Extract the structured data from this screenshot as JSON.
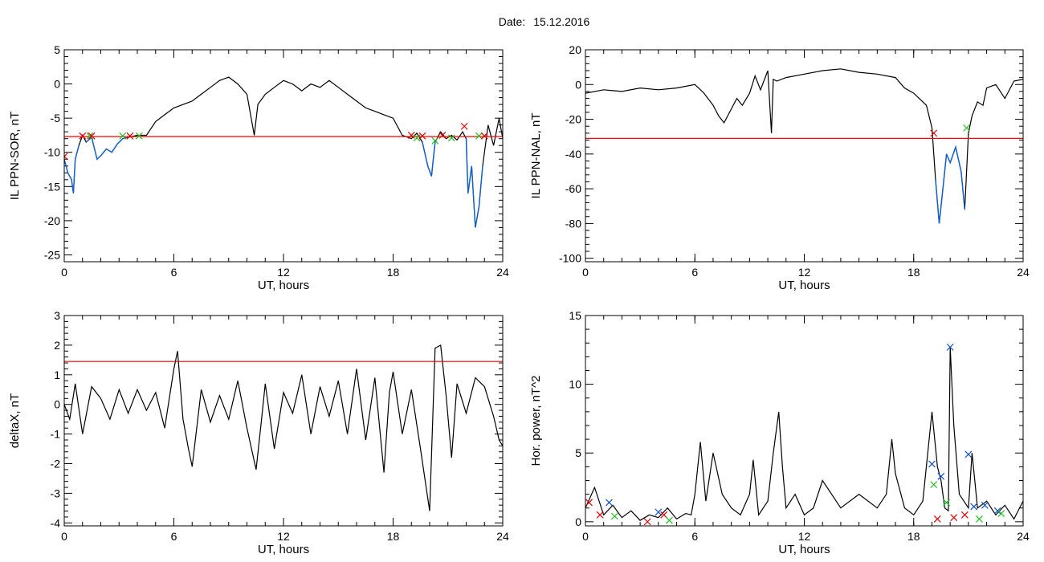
{
  "header": {
    "date_label": "Date:",
    "date_value": "15.12.2016"
  },
  "colors": {
    "trace": "#000000",
    "threshold": "#ff0000",
    "highlight": "#1060d0",
    "marker_red": "#e00000",
    "marker_green": "#20c020",
    "marker_blue": "#1050d0"
  },
  "chart_data": [
    {
      "id": "sor",
      "type": "line",
      "ylabel": "IL PPN-SOR, nT",
      "xlabel": "UT, hours",
      "xlim": [
        0,
        24
      ],
      "ylim": [
        -26,
        5
      ],
      "xticks": [
        0,
        6,
        12,
        18,
        24
      ],
      "yticks": [
        5,
        0,
        -5,
        -10,
        -15,
        -20,
        -25
      ],
      "threshold": -7.7,
      "series": [
        {
          "x": [
            0,
            0.2,
            0.4,
            0.5,
            0.6,
            0.8,
            1.0,
            1.2,
            1.5,
            1.8,
            2.0,
            2.3,
            2.6,
            2.9,
            3.2,
            3.5,
            4.0,
            4.5,
            5.0,
            5.5,
            6.0,
            7.0,
            7.5,
            8.0,
            8.5,
            9.0,
            9.5,
            10.0,
            10.4,
            10.6,
            11.0,
            11.5,
            12.0,
            12.5,
            13.0,
            13.5,
            14.0,
            14.5,
            15.0,
            15.5,
            16.0,
            16.5,
            17.0,
            17.5,
            18.0,
            18.5,
            19.0,
            19.3,
            19.6,
            19.9,
            20.1,
            20.3,
            20.6,
            20.9,
            21.2,
            21.5,
            21.8,
            22.0,
            22.1,
            22.3,
            22.5,
            22.7,
            22.9,
            23.2,
            23.5,
            23.8,
            24.0
          ],
          "y": [
            -11,
            -13,
            -14,
            -16,
            -11,
            -9,
            -7.5,
            -8.5,
            -7.8,
            -11,
            -10.5,
            -9.5,
            -10,
            -8.8,
            -8,
            -7.8,
            -7.5,
            -7.5,
            -5.5,
            -4.5,
            -3.5,
            -2.5,
            -1.5,
            -0.5,
            0.5,
            1,
            0,
            -1.5,
            -7.5,
            -3,
            -1.5,
            -0.5,
            0.5,
            0,
            -1,
            0,
            -0.5,
            0.5,
            -0.5,
            -1.5,
            -2.5,
            -3.5,
            -4,
            -4.5,
            -5,
            -7.5,
            -8,
            -7.2,
            -8.5,
            -12,
            -13.5,
            -8.5,
            -7,
            -8,
            -7.5,
            -8.2,
            -7,
            -8,
            -16,
            -12,
            -21,
            -18,
            -12,
            -6,
            -9,
            -5,
            -8
          ]
        }
      ],
      "markers": [
        {
          "x": 0.0,
          "y": -10.6,
          "c": "red"
        },
        {
          "x": 1.0,
          "y": -7.6,
          "c": "red"
        },
        {
          "x": 1.4,
          "y": -7.6,
          "c": "green"
        },
        {
          "x": 1.5,
          "y": -7.6,
          "c": "red"
        },
        {
          "x": 3.2,
          "y": -7.6,
          "c": "green"
        },
        {
          "x": 3.6,
          "y": -7.6,
          "c": "red"
        },
        {
          "x": 4.1,
          "y": -7.6,
          "c": "green"
        },
        {
          "x": 19.0,
          "y": -7.5,
          "c": "red"
        },
        {
          "x": 19.3,
          "y": -7.9,
          "c": "green"
        },
        {
          "x": 19.6,
          "y": -7.6,
          "c": "red"
        },
        {
          "x": 20.3,
          "y": -8.3,
          "c": "green"
        },
        {
          "x": 20.7,
          "y": -7.5,
          "c": "red"
        },
        {
          "x": 21.2,
          "y": -7.9,
          "c": "green"
        },
        {
          "x": 21.9,
          "y": -6.2,
          "c": "red"
        },
        {
          "x": 22.7,
          "y": -7.6,
          "c": "green"
        },
        {
          "x": 23.0,
          "y": -7.6,
          "c": "red"
        }
      ]
    },
    {
      "id": "nal",
      "type": "line",
      "ylabel": "IL PPN-NAL, nT",
      "xlabel": "UT, hours",
      "xlim": [
        0,
        24
      ],
      "ylim": [
        -102,
        20
      ],
      "xticks": [
        0,
        6,
        12,
        18,
        24
      ],
      "yticks": [
        20,
        0,
        -20,
        -40,
        -60,
        -80,
        -100
      ],
      "threshold": -31,
      "series": [
        {
          "x": [
            0,
            1.0,
            2.0,
            3.0,
            4.0,
            5.0,
            6.0,
            6.5,
            7.0,
            7.3,
            7.6,
            8.0,
            8.3,
            8.6,
            9.0,
            9.3,
            9.6,
            10.0,
            10.2,
            10.3,
            10.5,
            11.0,
            12.0,
            13.0,
            14.0,
            15.0,
            16.0,
            17.0,
            17.5,
            18.0,
            18.3,
            18.7,
            19.0,
            19.2,
            19.4,
            19.6,
            19.8,
            20.0,
            20.3,
            20.6,
            20.8,
            21.0,
            21.2,
            21.5,
            21.8,
            22.0,
            22.5,
            23.0,
            23.5,
            24.0
          ],
          "y": [
            -5,
            -3,
            -4,
            -2,
            -3,
            -2,
            0,
            -5,
            -12,
            -18,
            -22,
            -14,
            -8,
            -12,
            -5,
            5,
            -3,
            8,
            -28,
            3,
            2,
            4,
            6,
            8,
            9,
            7,
            6,
            4,
            -2,
            -5,
            -8,
            -12,
            -25,
            -55,
            -80,
            -60,
            -40,
            -45,
            -36,
            -50,
            -72,
            -28,
            -18,
            -10,
            -12,
            -2,
            0,
            -8,
            2,
            3
          ]
        }
      ],
      "markers": [
        {
          "x": 19.1,
          "y": -28,
          "c": "red"
        },
        {
          "x": 20.9,
          "y": -25,
          "c": "green"
        }
      ]
    },
    {
      "id": "deltax",
      "type": "line",
      "ylabel": "deltaX, nT",
      "xlabel": "UT, hours",
      "xlim": [
        0,
        24
      ],
      "ylim": [
        -4.1,
        3
      ],
      "xticks": [
        0,
        6,
        12,
        18,
        24
      ],
      "yticks": [
        3,
        2,
        1,
        0,
        -1,
        -2,
        -3,
        -4
      ],
      "threshold": 1.45,
      "series": [
        {
          "x": [
            0,
            0.3,
            0.6,
            1.0,
            1.5,
            2.0,
            2.5,
            3.0,
            3.5,
            4.0,
            4.5,
            5.0,
            5.5,
            6.0,
            6.2,
            6.5,
            6.8,
            7.0,
            7.5,
            8.0,
            8.5,
            9.0,
            9.5,
            10.0,
            10.5,
            10.8,
            11.0,
            11.5,
            12.0,
            12.5,
            13.0,
            13.5,
            14.0,
            14.5,
            15.0,
            15.5,
            16.0,
            16.5,
            17.0,
            17.5,
            17.8,
            18.0,
            18.5,
            19.0,
            19.5,
            20.0,
            20.3,
            20.6,
            20.9,
            21.2,
            21.5,
            22.0,
            22.5,
            23.0,
            23.5,
            23.8,
            24.0
          ],
          "y": [
            0,
            -0.5,
            0.7,
            -1,
            0.6,
            0.2,
            -0.5,
            0.5,
            -0.3,
            0.5,
            -0.2,
            0.4,
            -0.8,
            1.2,
            1.8,
            -0.5,
            -1.5,
            -2.1,
            0.5,
            -0.6,
            0.3,
            -0.5,
            0.8,
            -0.8,
            -2.2,
            -0.5,
            0.7,
            -1.5,
            0.4,
            -0.3,
            1.0,
            -1.0,
            0.6,
            -0.4,
            0.8,
            -1.0,
            1.2,
            -1.2,
            0.9,
            -2.3,
            0.4,
            1.1,
            -1.0,
            0.5,
            -1.5,
            -3.6,
            1.9,
            2.0,
            0.3,
            -1.8,
            0.7,
            -0.3,
            0.9,
            0.6,
            -0.4,
            -1.2,
            -1.4
          ]
        }
      ],
      "markers": []
    },
    {
      "id": "power",
      "type": "line",
      "ylabel": "Hor. power, nT^2",
      "xlabel": "UT, hours",
      "xlim": [
        0,
        24
      ],
      "ylim": [
        -0.3,
        15
      ],
      "xticks": [
        0,
        6,
        12,
        18,
        24
      ],
      "yticks": [
        15,
        10,
        5,
        0
      ],
      "threshold": null,
      "series": [
        {
          "x": [
            0,
            0.5,
            1.0,
            1.5,
            2.0,
            2.5,
            3.0,
            3.5,
            4.0,
            4.5,
            5.0,
            5.5,
            5.8,
            6.0,
            6.3,
            6.6,
            7.0,
            7.5,
            8.0,
            8.5,
            9.0,
            9.2,
            9.5,
            10.0,
            10.3,
            10.6,
            10.8,
            11.0,
            11.5,
            12.0,
            12.5,
            13.0,
            14.0,
            15.0,
            16.0,
            16.5,
            16.8,
            17.0,
            17.5,
            18.0,
            18.5,
            19.0,
            19.3,
            19.5,
            19.7,
            19.9,
            20.0,
            20.2,
            20.5,
            21.0,
            21.2,
            21.5,
            22.0,
            22.5,
            23.0,
            23.5,
            24.0
          ],
          "y": [
            1.0,
            2.5,
            0.5,
            1.2,
            0.3,
            0.8,
            0.1,
            0.5,
            0.3,
            1.0,
            0.2,
            0.6,
            0.5,
            2.0,
            5.8,
            1.5,
            5.0,
            2.0,
            1.0,
            0.5,
            2.0,
            4.5,
            0.5,
            1.5,
            5.0,
            8.0,
            4.0,
            1.0,
            2.0,
            0.5,
            1.0,
            3.0,
            1.0,
            2.0,
            1.0,
            2.0,
            6.0,
            3.5,
            1.0,
            0.5,
            1.5,
            8.0,
            4.0,
            3.0,
            1.0,
            0.8,
            12.7,
            7.0,
            2.0,
            1.0,
            5.0,
            1.0,
            1.5,
            0.5,
            1.2,
            0.2,
            1.5
          ]
        }
      ],
      "markers": [
        {
          "x": 0.2,
          "y": 1.4,
          "c": "red"
        },
        {
          "x": 1.3,
          "y": 1.4,
          "c": "blue"
        },
        {
          "x": 0.8,
          "y": 0.5,
          "c": "red"
        },
        {
          "x": 1.6,
          "y": 0.4,
          "c": "green"
        },
        {
          "x": 3.4,
          "y": 0.0,
          "c": "red"
        },
        {
          "x": 4.0,
          "y": 0.7,
          "c": "blue"
        },
        {
          "x": 4.3,
          "y": 0.5,
          "c": "red"
        },
        {
          "x": 4.6,
          "y": 0.1,
          "c": "green"
        },
        {
          "x": 19.0,
          "y": 4.2,
          "c": "blue"
        },
        {
          "x": 19.1,
          "y": 2.7,
          "c": "green"
        },
        {
          "x": 19.3,
          "y": 0.2,
          "c": "red"
        },
        {
          "x": 19.5,
          "y": 3.3,
          "c": "blue"
        },
        {
          "x": 19.8,
          "y": 1.4,
          "c": "green"
        },
        {
          "x": 20.0,
          "y": 12.7,
          "c": "blue"
        },
        {
          "x": 20.2,
          "y": 0.3,
          "c": "red"
        },
        {
          "x": 21.0,
          "y": 4.9,
          "c": "blue"
        },
        {
          "x": 20.8,
          "y": 0.5,
          "c": "red"
        },
        {
          "x": 21.3,
          "y": 1.1,
          "c": "blue"
        },
        {
          "x": 21.6,
          "y": 0.2,
          "c": "green"
        },
        {
          "x": 21.9,
          "y": 1.2,
          "c": "blue"
        },
        {
          "x": 22.6,
          "y": 0.8,
          "c": "blue"
        },
        {
          "x": 22.8,
          "y": 0.6,
          "c": "green"
        }
      ]
    }
  ]
}
